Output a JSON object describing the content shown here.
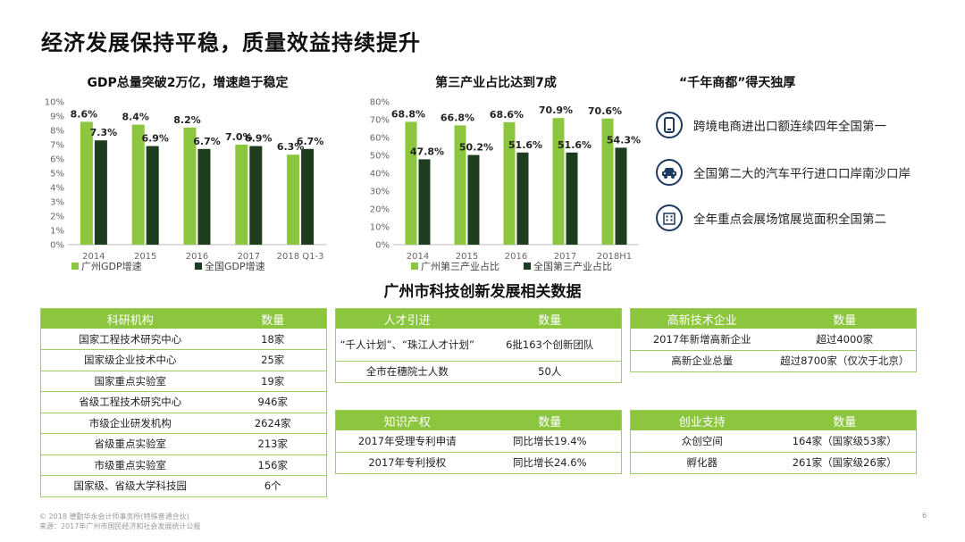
{
  "page": {
    "title": "经济发展保持平稳，质量效益持续提升",
    "footnote_1": "© 2018 德勤华永会计师事务所(特殊普通合伙)",
    "footnote_2": "来源：2017年广州市国民经济和社会发展统计公报",
    "page_number": "6"
  },
  "colors": {
    "green": "#8cc63f",
    "dark_green": "#1e3d1e",
    "table_border": "#9fcf5e",
    "icon_navy": "#1f3a5f"
  },
  "chart_data": [
    {
      "type": "bar",
      "title": "GDP总量突破2万亿，增速趋于稳定",
      "categories": [
        "2014",
        "2015",
        "2016",
        "2017",
        "2018 Q1-3"
      ],
      "ylim": [
        0,
        10
      ],
      "yticks": [
        "0%",
        "1%",
        "2%",
        "3%",
        "4%",
        "5%",
        "6%",
        "7%",
        "8%",
        "9%",
        "10%"
      ],
      "series": [
        {
          "name": "广州GDP增速",
          "color": "#8cc63f",
          "values": [
            8.6,
            8.4,
            8.2,
            7.0,
            6.3
          ],
          "labels": [
            "8.6%",
            "8.4%",
            "8.2%",
            "7.0%",
            "6.3%"
          ]
        },
        {
          "name": "全国GDP增速",
          "color": "#1e3d1e",
          "values": [
            7.3,
            6.9,
            6.7,
            6.9,
            6.7
          ],
          "labels": [
            "7.3%",
            "6.9%",
            "6.7%",
            "6.9%",
            "6.7%"
          ]
        }
      ]
    },
    {
      "type": "bar",
      "title": "第三产业占比达到7成",
      "categories": [
        "2014",
        "2015",
        "2016",
        "2017",
        "2018H1"
      ],
      "ylim": [
        0,
        80
      ],
      "yticks": [
        "0%",
        "10%",
        "20%",
        "30%",
        "40%",
        "50%",
        "60%",
        "70%",
        "80%"
      ],
      "series": [
        {
          "name": "广州第三产业占比",
          "color": "#8cc63f",
          "values": [
            68.8,
            66.8,
            68.6,
            70.9,
            70.6
          ],
          "labels": [
            "68.8%",
            "66.8%",
            "68.6%",
            "70.9%",
            "70.6%"
          ]
        },
        {
          "name": "全国第三产业占比",
          "color": "#1e3d1e",
          "values": [
            47.8,
            50.2,
            51.6,
            51.6,
            54.3
          ],
          "labels": [
            "47.8%",
            "50.2%",
            "51.6%",
            "51.6%",
            "54.3%"
          ]
        }
      ]
    }
  ],
  "advantages": {
    "title": "“千年商都”得天独厚",
    "items": [
      {
        "icon": "smartphone-icon",
        "text": "跨境电商进出口额连续四年全国第一"
      },
      {
        "icon": "car-icon",
        "text": "全国第二大的汽车平行进口口岸南沙口岸"
      },
      {
        "icon": "building-icon",
        "text": "全年重点会展场馆展览面积全国第二"
      }
    ]
  },
  "tech": {
    "title": "广州市科技创新发展相关数据",
    "research": {
      "header": [
        "科研机构",
        "数量"
      ],
      "rows": [
        [
          "国家工程技术研究中心",
          "18家"
        ],
        [
          "国家级企业技术中心",
          "25家"
        ],
        [
          "国家重点实验室",
          "19家"
        ],
        [
          "省级工程技术研究中心",
          "946家"
        ],
        [
          "市级企业研发机构",
          "2624家"
        ],
        [
          "省级重点实验室",
          "213家"
        ],
        [
          "市级重点实验室",
          "156家"
        ],
        [
          "国家级、省级大学科技园",
          "6个"
        ]
      ]
    },
    "talent": {
      "header": [
        "人才引进",
        "数量"
      ],
      "rows": [
        [
          "“千人计划”、“珠江人才计划”",
          "6批163个创新团队"
        ],
        [
          "全市在穗院士人数",
          "50人"
        ]
      ]
    },
    "hightech": {
      "header": [
        "高新技术企业",
        "数量"
      ],
      "rows": [
        [
          "2017年新增高新企业",
          "超过4000家"
        ],
        [
          "高新企业总量",
          "超过8700家（仅次于北京）"
        ]
      ]
    },
    "ip": {
      "header": [
        "知识产权",
        "数量"
      ],
      "rows": [
        [
          "2017年受理专利申请",
          "同比增长19.4%"
        ],
        [
          "2017年专利授权",
          "同比增长24.6%"
        ]
      ]
    },
    "startup": {
      "header": [
        "创业支持",
        "数量"
      ],
      "rows": [
        [
          "众创空间",
          "164家（国家级53家）"
        ],
        [
          "孵化器",
          "261家（国家级26家）"
        ]
      ]
    }
  }
}
